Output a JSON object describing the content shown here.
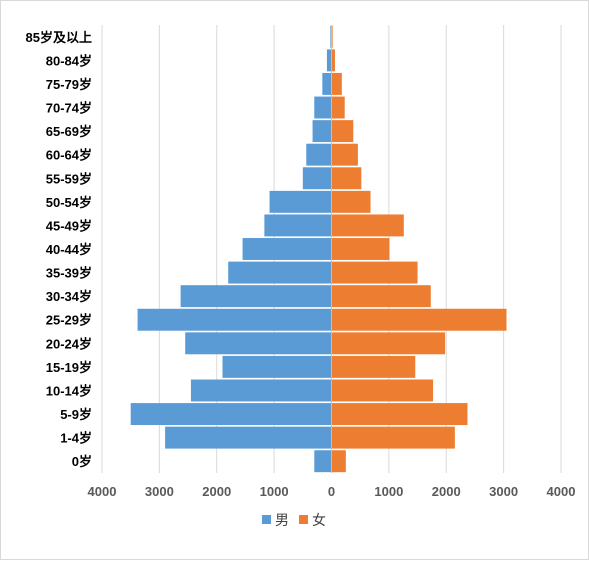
{
  "chart_data": {
    "type": "bar",
    "orientation": "horizontal",
    "subtype": "population-pyramid",
    "title": "",
    "xlabel": "",
    "ylabel": "",
    "categories": [
      "0岁",
      "1-4岁",
      "5-9岁",
      "10-14岁",
      "15-19岁",
      "20-24岁",
      "25-29岁",
      "30-34岁",
      "35-39岁",
      "40-44岁",
      "45-49岁",
      "50-54岁",
      "55-59岁",
      "60-64岁",
      "65-69岁",
      "70-74岁",
      "75-79岁",
      "80-84岁",
      "85岁及以上"
    ],
    "series": [
      {
        "name": "男",
        "color": "#5B9BD5",
        "side": "left",
        "values": [
          300,
          2900,
          3500,
          2450,
          1900,
          2550,
          3380,
          2630,
          1800,
          1550,
          1170,
          1080,
          500,
          440,
          330,
          300,
          160,
          80,
          20
        ]
      },
      {
        "name": "女",
        "color": "#ED7D31",
        "side": "right",
        "values": [
          250,
          2150,
          2370,
          1770,
          1460,
          1980,
          3050,
          1730,
          1500,
          1010,
          1260,
          680,
          520,
          460,
          380,
          230,
          180,
          60,
          20
        ]
      }
    ],
    "xlim": [
      -4000,
      4000
    ],
    "x_ticks": [
      "4000",
      "3000",
      "2000",
      "1000",
      "0",
      "1000",
      "2000",
      "3000",
      "4000"
    ],
    "grid": true,
    "legend": "bottom-center"
  }
}
